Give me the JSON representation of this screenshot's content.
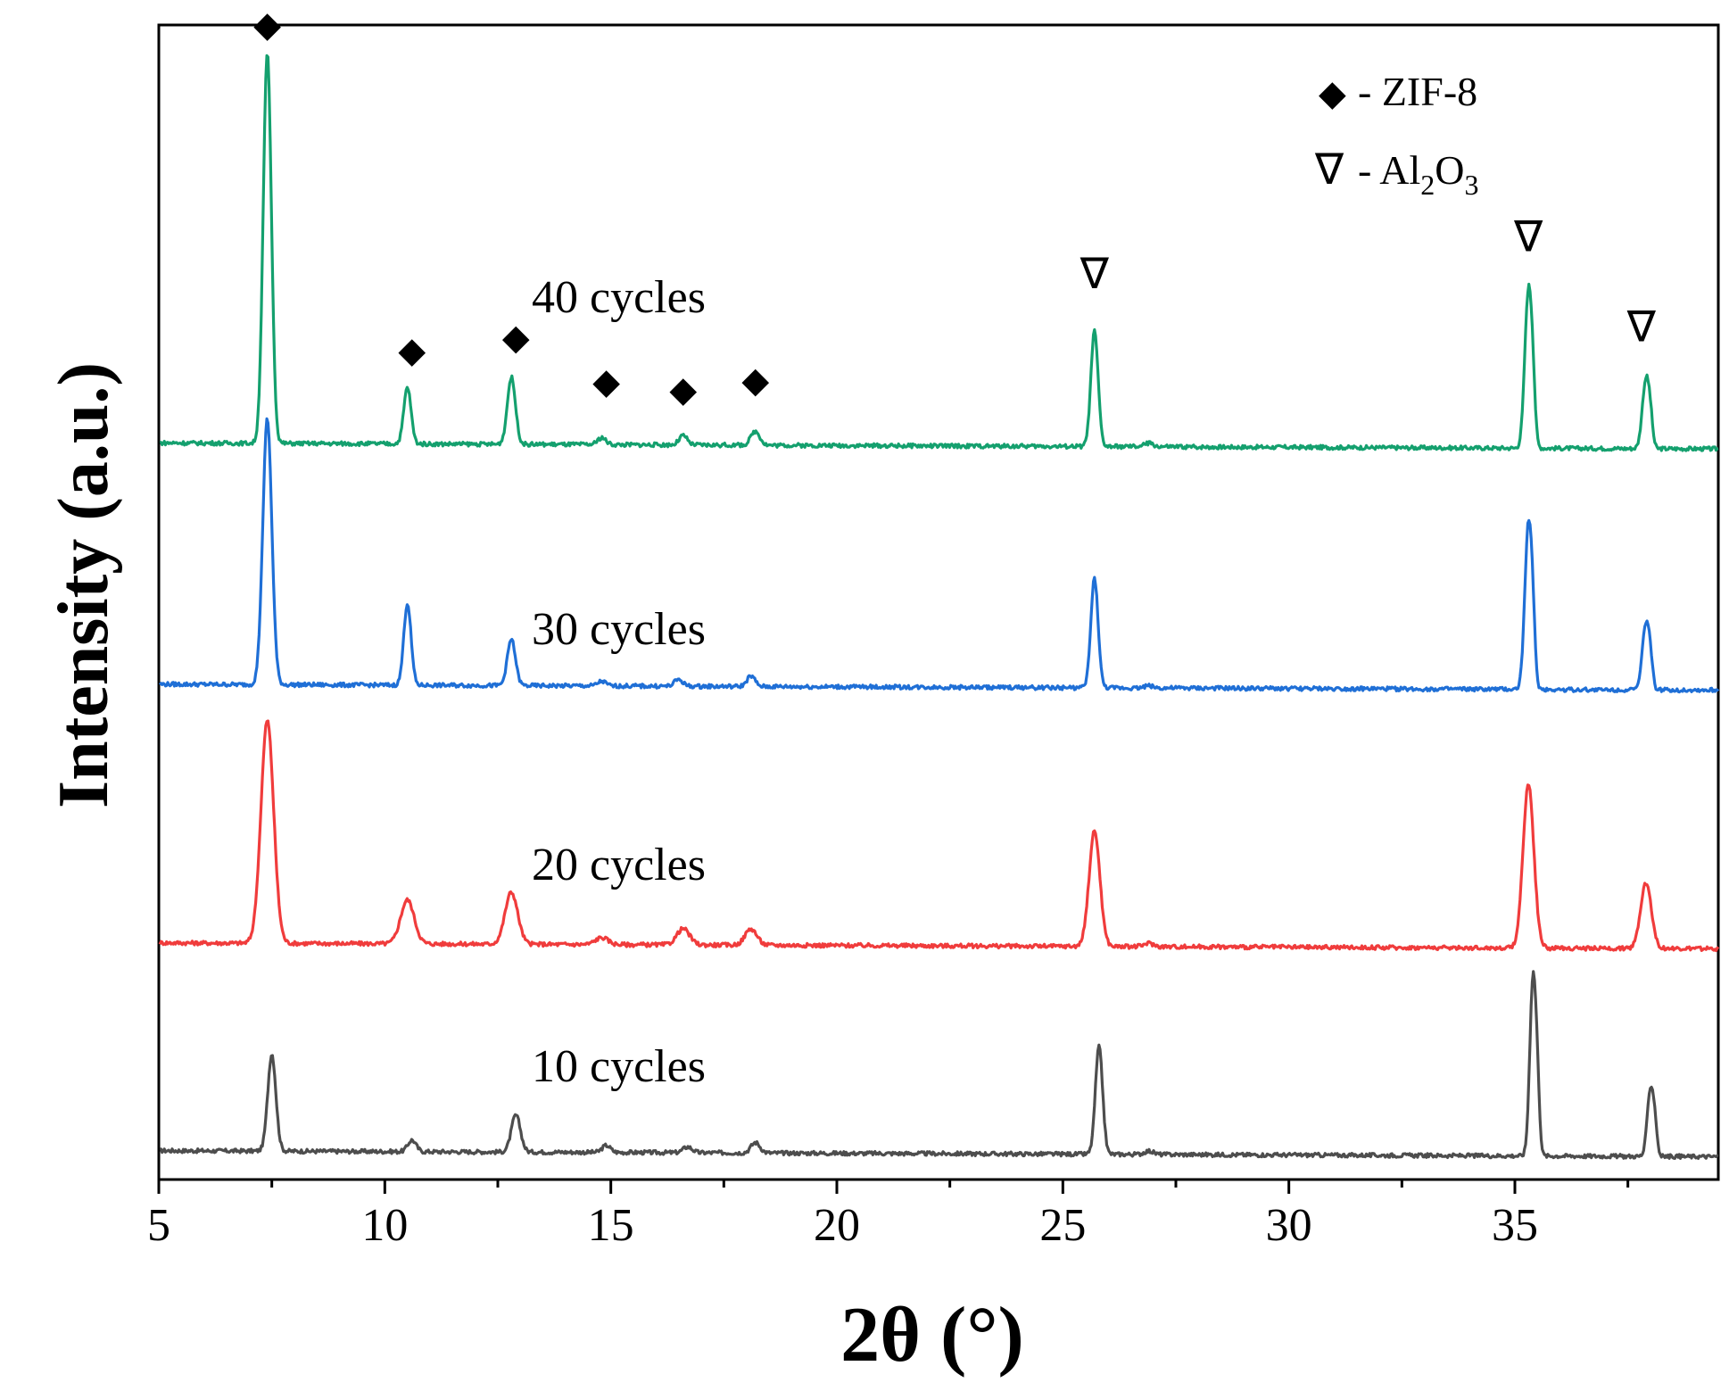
{
  "chart_data": {
    "type": "line",
    "title": "",
    "xlabel": "2θ (°)",
    "ylabel": "Intensity (a.u.)",
    "xlim": [
      5,
      39.5
    ],
    "ylim": [
      0,
      100
    ],
    "x_ticks": [
      5,
      10,
      15,
      20,
      25,
      30,
      35
    ],
    "x_minor_ticks": [
      7.5,
      12.5,
      17.5,
      22.5,
      27.5,
      32.5,
      37.5
    ],
    "grid": false,
    "legend": {
      "position": "top-right",
      "entries": [
        {
          "symbol": "◆",
          "label": "- ZIF-8"
        },
        {
          "symbol": "∇",
          "label": "- Al",
          "sub1": "2",
          "mid": "O",
          "sub2": "3"
        }
      ]
    },
    "series": [
      {
        "name": "10 cycles",
        "color": "#4d4d4d",
        "baseline": 2.5,
        "peaks": [
          [
            7.5,
            8.4,
            0.09
          ],
          [
            10.6,
            1.0,
            0.09
          ],
          [
            12.9,
            3.2,
            0.1
          ],
          [
            14.9,
            0.6,
            0.09
          ],
          [
            16.7,
            0.5,
            0.1
          ],
          [
            18.2,
            0.9,
            0.1
          ],
          [
            25.8,
            9.3,
            0.08
          ],
          [
            26.9,
            0.3,
            0.1
          ],
          [
            35.4,
            15.3,
            0.07
          ],
          [
            35.5,
            4.0,
            0.05
          ],
          [
            38.0,
            5.8,
            0.07
          ],
          [
            38.1,
            2.0,
            0.05
          ]
        ]
      },
      {
        "name": "20 cycles",
        "color": "#f03c3c",
        "baseline": 20.5,
        "peaks": [
          [
            7.4,
            19.3,
            0.14
          ],
          [
            10.5,
            3.8,
            0.15
          ],
          [
            12.8,
            4.5,
            0.14
          ],
          [
            14.8,
            0.6,
            0.14
          ],
          [
            16.6,
            1.4,
            0.14
          ],
          [
            18.1,
            1.4,
            0.13
          ],
          [
            25.7,
            10.0,
            0.12
          ],
          [
            26.9,
            0.3,
            0.1
          ],
          [
            35.3,
            14.2,
            0.12
          ],
          [
            37.9,
            5.7,
            0.12
          ]
        ]
      },
      {
        "name": "30 cycles",
        "color": "#1f6fd6",
        "baseline": 42.9,
        "peaks": [
          [
            7.4,
            23.0,
            0.1
          ],
          [
            10.5,
            7.1,
            0.08
          ],
          [
            12.8,
            4.0,
            0.09
          ],
          [
            14.8,
            0.4,
            0.09
          ],
          [
            16.5,
            0.6,
            0.09
          ],
          [
            18.1,
            0.9,
            0.09
          ],
          [
            25.7,
            9.5,
            0.08
          ],
          [
            26.9,
            0.2,
            0.1
          ],
          [
            35.3,
            14.3,
            0.08
          ],
          [
            35.4,
            3.0,
            0.05
          ],
          [
            37.9,
            5.7,
            0.08
          ],
          [
            38.0,
            1.5,
            0.05
          ]
        ]
      },
      {
        "name": "40 cycles",
        "color": "#14a06e",
        "baseline": 63.8,
        "peaks": [
          [
            7.4,
            33.8,
            0.09
          ],
          [
            10.5,
            4.9,
            0.08
          ],
          [
            12.8,
            5.8,
            0.09
          ],
          [
            14.8,
            0.6,
            0.09
          ],
          [
            16.6,
            0.8,
            0.09
          ],
          [
            18.2,
            1.2,
            0.1
          ],
          [
            25.7,
            10.0,
            0.08
          ],
          [
            26.9,
            0.3,
            0.1
          ],
          [
            35.3,
            13.6,
            0.08
          ],
          [
            35.4,
            3.0,
            0.05
          ],
          [
            37.9,
            6.0,
            0.08
          ],
          [
            38.0,
            1.5,
            0.05
          ]
        ]
      }
    ],
    "annotations": [
      {
        "symbol": "◆",
        "x": 7.4,
        "y": 99.0
      },
      {
        "symbol": "◆",
        "x": 10.6,
        "y": 70.8
      },
      {
        "symbol": "◆",
        "x": 12.9,
        "y": 71.9
      },
      {
        "symbol": "◆",
        "x": 14.9,
        "y": 68.1
      },
      {
        "symbol": "◆",
        "x": 16.6,
        "y": 67.4
      },
      {
        "symbol": "◆",
        "x": 18.2,
        "y": 68.2
      },
      {
        "symbol": "∇",
        "x": 25.7,
        "y": 77.2
      },
      {
        "symbol": "∇",
        "x": 35.3,
        "y": 80.4
      },
      {
        "symbol": "∇",
        "x": 37.8,
        "y": 72.6
      }
    ]
  }
}
